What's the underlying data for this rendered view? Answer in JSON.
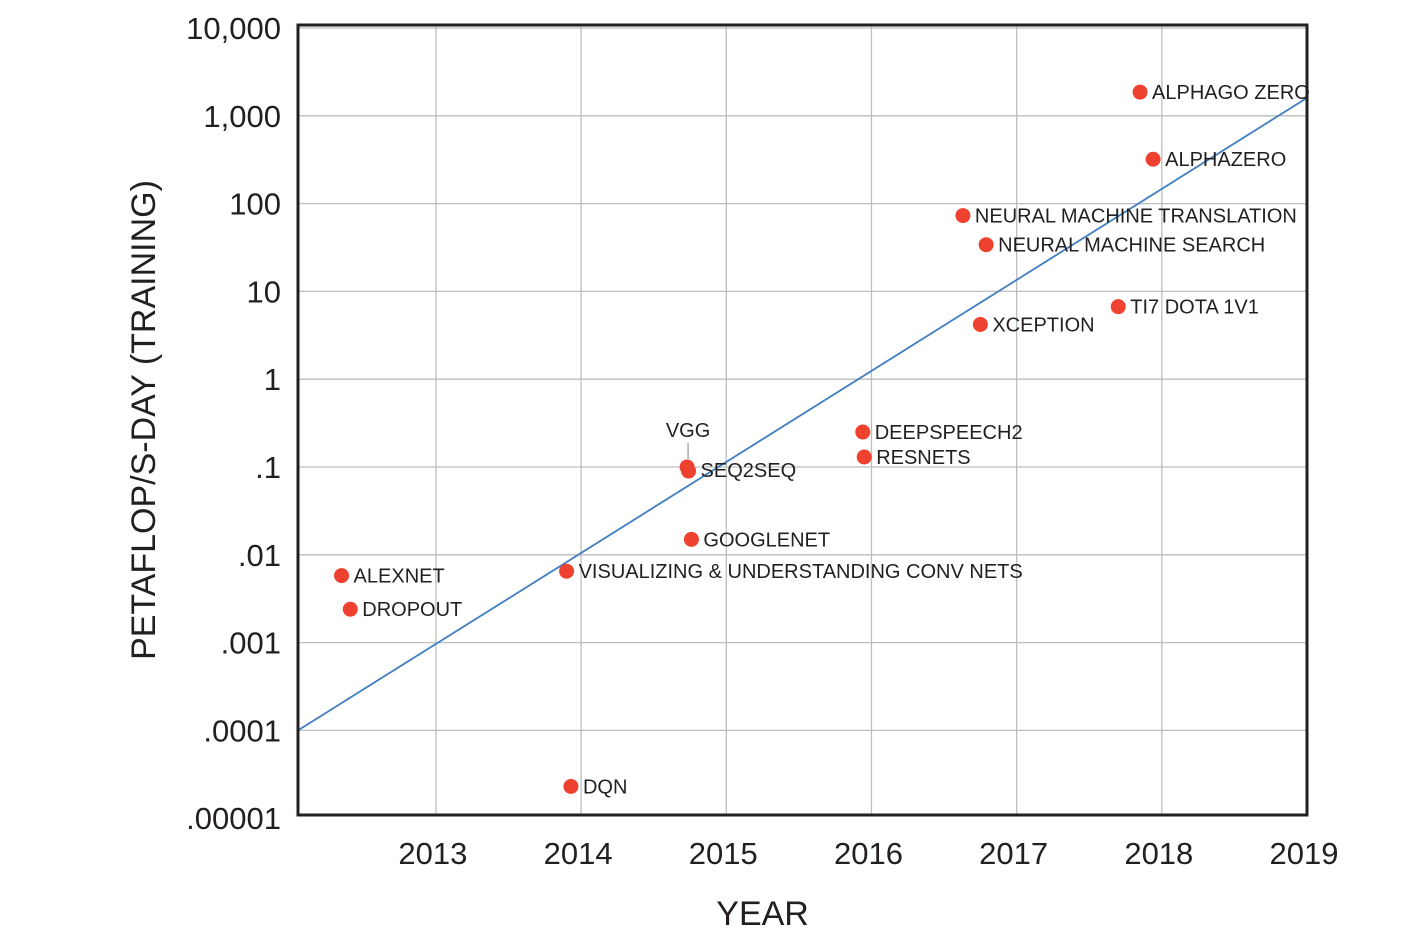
{
  "chart_data": {
    "type": "scatter",
    "title": "",
    "xlabel": "YEAR",
    "ylabel": "PETAFLOP/S-DAY (TRAINING)",
    "y_scale": "log",
    "xlim": [
      2012.05,
      2019
    ],
    "ylim": [
      1e-05,
      10000
    ],
    "grid": true,
    "x_ticks": [
      {
        "value": 2013,
        "label": "2013"
      },
      {
        "value": 2014,
        "label": "2014"
      },
      {
        "value": 2015,
        "label": "2015"
      },
      {
        "value": 2016,
        "label": "2016"
      },
      {
        "value": 2017,
        "label": "2017"
      },
      {
        "value": 2018,
        "label": "2018"
      },
      {
        "value": 2019,
        "label": "2019"
      }
    ],
    "y_ticks": [
      {
        "value": 1e-05,
        "label": ".00001"
      },
      {
        "value": 0.0001,
        "label": ".0001"
      },
      {
        "value": 0.001,
        "label": ".001"
      },
      {
        "value": 0.01,
        "label": ".01"
      },
      {
        "value": 0.1,
        "label": ".1"
      },
      {
        "value": 1,
        "label": "1"
      },
      {
        "value": 10,
        "label": "10"
      },
      {
        "value": 100,
        "label": "100"
      },
      {
        "value": 1000,
        "label": "1,000"
      },
      {
        "value": 10000,
        "label": "10,000"
      }
    ],
    "points": [
      {
        "label": "ALEXNET",
        "x": 2012.35,
        "y": 0.0058
      },
      {
        "label": "DROPOUT",
        "x": 2012.41,
        "y": 0.0024
      },
      {
        "label": "DQN",
        "x": 2013.93,
        "y": 2.3e-05
      },
      {
        "label": "VISUALIZING & UNDERSTANDING CONV NETS",
        "x": 2013.9,
        "y": 0.0065
      },
      {
        "label": "VGG",
        "x": 2014.73,
        "y": 0.1
      },
      {
        "label": "SEQ2SEQ",
        "x": 2014.74,
        "y": 0.09
      },
      {
        "label": "GOOGLENET",
        "x": 2014.76,
        "y": 0.015
      },
      {
        "label": "DEEPSPEECH2",
        "x": 2015.94,
        "y": 0.25
      },
      {
        "label": "RESNETS",
        "x": 2015.95,
        "y": 0.13
      },
      {
        "label": "NEURAL MACHINE TRANSLATION",
        "x": 2016.63,
        "y": 73
      },
      {
        "label": "NEURAL MACHINE SEARCH",
        "x": 2016.79,
        "y": 34
      },
      {
        "label": "XCEPTION",
        "x": 2016.75,
        "y": 4.2
      },
      {
        "label": "TI7 DOTA 1V1",
        "x": 2017.7,
        "y": 6.7
      },
      {
        "label": "ALPHAGO ZERO",
        "x": 2017.85,
        "y": 1860
      },
      {
        "label": "ALPHAZERO",
        "x": 2017.94,
        "y": 320
      }
    ],
    "trend_line": {
      "x": [
        2012.05,
        2019
      ],
      "y": [
        0.0001,
        1600
      ]
    },
    "colors": {
      "points": "#ef4130",
      "trend": "#3f7fbf",
      "grid": "#bcbec0",
      "axis": "#231f20"
    }
  }
}
